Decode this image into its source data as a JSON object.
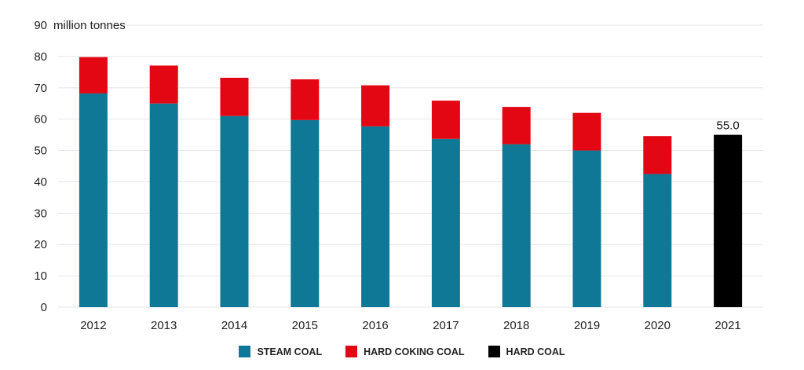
{
  "chart_data": {
    "type": "bar",
    "stacked": true,
    "ylabel": "million tonnes",
    "ylim": [
      0,
      90
    ],
    "yticks": [
      0,
      10,
      20,
      30,
      40,
      50,
      60,
      70,
      80,
      90
    ],
    "categories": [
      "2012",
      "2013",
      "2014",
      "2015",
      "2016",
      "2017",
      "2018",
      "2019",
      "2020",
      "2021"
    ],
    "series": [
      {
        "name": "STEAM COAL",
        "color": "#0e7896",
        "values": [
          68.2,
          65.0,
          61.0,
          59.7,
          57.7,
          53.7,
          52.0,
          50.0,
          42.5,
          null
        ]
      },
      {
        "name": "HARD COKING COAL",
        "color": "#e30613",
        "values": [
          11.6,
          12.1,
          12.2,
          13.0,
          13.1,
          12.2,
          11.9,
          12.0,
          12.1,
          null
        ]
      },
      {
        "name": "HARD COAL",
        "color": "#000000",
        "values": [
          null,
          null,
          null,
          null,
          null,
          null,
          null,
          null,
          null,
          55.0
        ]
      }
    ],
    "data_labels": [
      {
        "category": "2021",
        "text": "55.0"
      }
    ],
    "grid": true,
    "legend_position": "bottom-center"
  }
}
